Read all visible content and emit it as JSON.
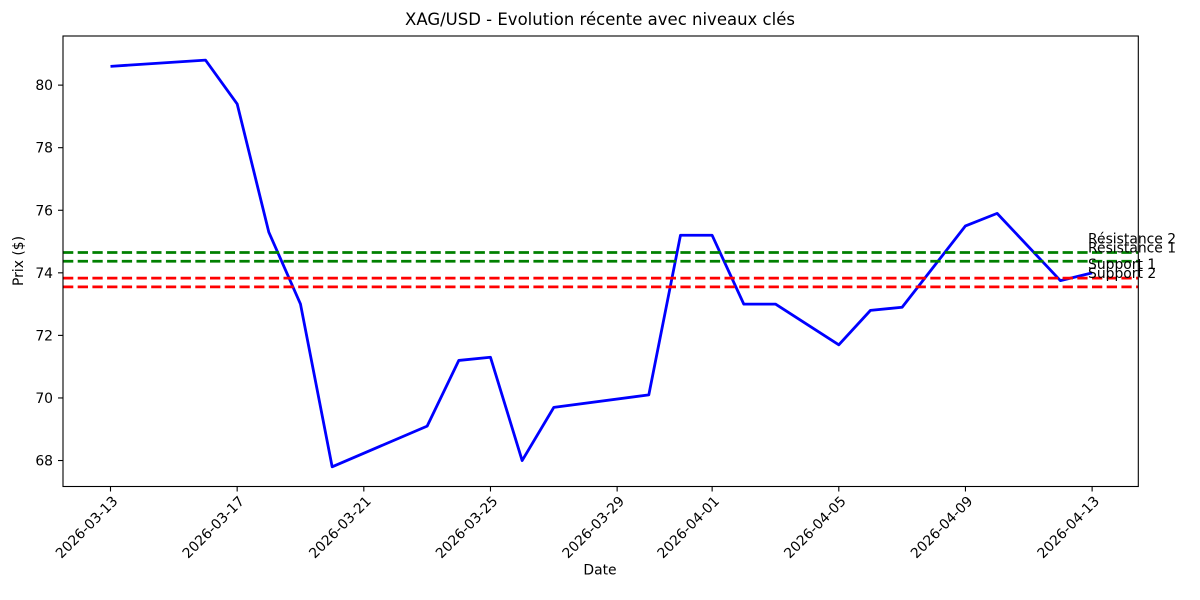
{
  "chart_data": {
    "type": "line",
    "title": "XAG/USD - Evolution récente avec niveaux clés",
    "xlabel": "Date",
    "ylabel": "Prix ($)",
    "grid": false,
    "legend_position": "none",
    "background": "#ffffff",
    "axis_color": "#000000",
    "ylim": [
      67.17,
      81.57
    ],
    "xlim": [
      "2026-03-11T12:00:00Z",
      "2026-04-14T11:00:00Z"
    ],
    "y_ticks": [
      68,
      70,
      72,
      74,
      76,
      78,
      80
    ],
    "x_ticks": [
      "2026-03-13",
      "2026-03-17",
      "2026-03-21",
      "2026-03-25",
      "2026-03-29",
      "2026-04-01",
      "2026-04-05",
      "2026-04-09",
      "2026-04-13"
    ],
    "series": [
      {
        "name": "XAG/USD",
        "color": "#0000ff",
        "points": [
          [
            "2026-03-13",
            80.6
          ],
          [
            "2026-03-16",
            80.8
          ],
          [
            "2026-03-17",
            79.4
          ],
          [
            "2026-03-18",
            75.3
          ],
          [
            "2026-03-19",
            73.0
          ],
          [
            "2026-03-20",
            67.8
          ],
          [
            "2026-03-23",
            69.1
          ],
          [
            "2026-03-24",
            71.2
          ],
          [
            "2026-03-25",
            71.3
          ],
          [
            "2026-03-26",
            68.0
          ],
          [
            "2026-03-27",
            69.7
          ],
          [
            "2026-03-30",
            70.1
          ],
          [
            "2026-03-31",
            75.2
          ],
          [
            "2026-04-01",
            75.2
          ],
          [
            "2026-04-02",
            73.0
          ],
          [
            "2026-04-03",
            73.0
          ],
          [
            "2026-04-05",
            71.7
          ],
          [
            "2026-04-06",
            72.8
          ],
          [
            "2026-04-07",
            72.9
          ],
          [
            "2026-04-09",
            75.5
          ],
          [
            "2026-04-10",
            75.9
          ],
          [
            "2026-04-12",
            73.75
          ],
          [
            "2026-04-13",
            74.0
          ]
        ]
      }
    ],
    "levels": [
      {
        "label": "Résistance 2",
        "value": 74.65,
        "color": "#008000",
        "style": "dashed"
      },
      {
        "label": "Résistance 1",
        "value": 74.37,
        "color": "#008000",
        "style": "dashed"
      },
      {
        "label": "Support 1",
        "value": 73.83,
        "color": "#ff0000",
        "style": "dashed"
      },
      {
        "label": "Support 2",
        "value": 73.55,
        "color": "#ff0000",
        "style": "dashed"
      }
    ]
  }
}
